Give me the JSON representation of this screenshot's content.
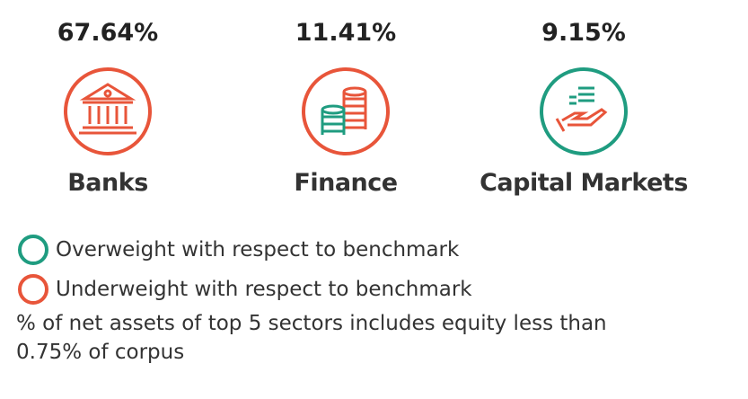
{
  "sectors": [
    {
      "value": "67.64%",
      "name": "Banks",
      "color": "#e8553a"
    },
    {
      "value": "11.41%",
      "name": "Finance",
      "color": "#e8553a"
    },
    {
      "value": "9.15%",
      "name": "Capital Markets",
      "color": "#1f9c80"
    }
  ],
  "legend": [
    {
      "label": "Overweight with respect to benchmark",
      "color": "#1f9c80"
    },
    {
      "label": "Underweight with respect to benchmark",
      "color": "#e8553a"
    }
  ],
  "note": "% of net assets of top 5 sectors includes equity less than 0.75% of corpus"
}
